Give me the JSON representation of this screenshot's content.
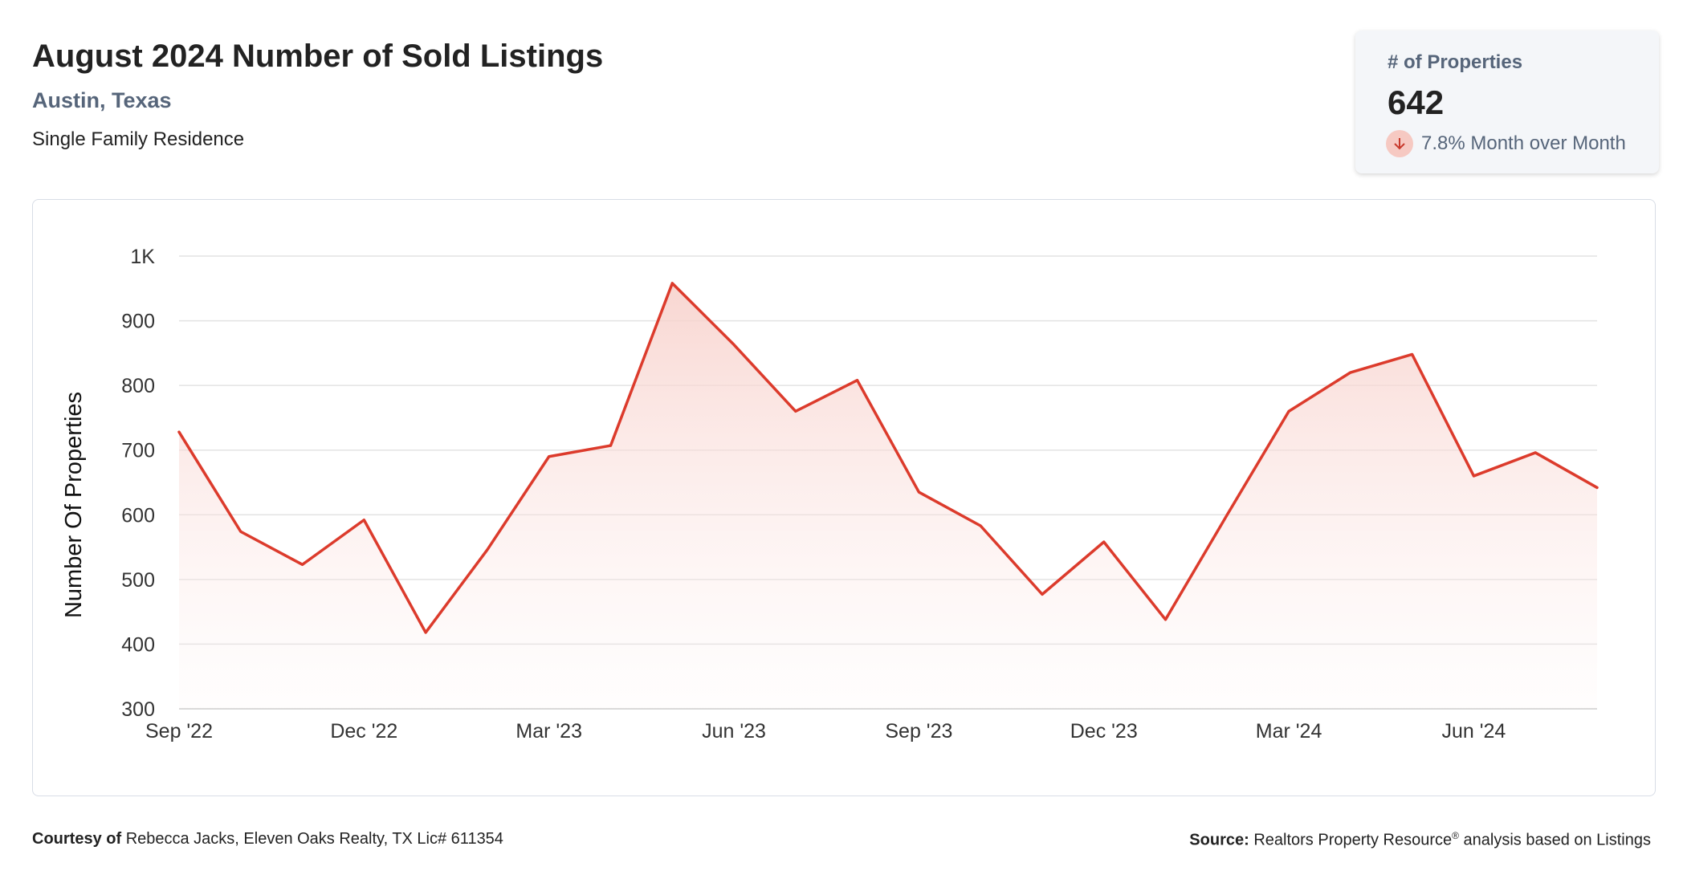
{
  "header": {
    "title": "August 2024 Number of Sold Listings",
    "location": "Austin, Texas",
    "property_type": "Single Family Residence"
  },
  "kpi": {
    "label": "# of Properties",
    "value": "642",
    "change_text": "7.8% Month over Month",
    "direction_icon": "arrow-down-icon"
  },
  "colors": {
    "line": "#dc3b2c",
    "fill": "#f7cfc9",
    "grid": "#e3e3e3",
    "axis_text": "#333333"
  },
  "chart_data": {
    "type": "area",
    "title": "",
    "ylabel": "Number Of Properties",
    "xlabel": "",
    "ylim": [
      300,
      1000
    ],
    "y_ticks": [
      {
        "value": 300,
        "label": "300"
      },
      {
        "value": 400,
        "label": "400"
      },
      {
        "value": 500,
        "label": "500"
      },
      {
        "value": 600,
        "label": "600"
      },
      {
        "value": 700,
        "label": "700"
      },
      {
        "value": 800,
        "label": "800"
      },
      {
        "value": 900,
        "label": "900"
      },
      {
        "value": 1000,
        "label": "1K"
      }
    ],
    "x": [
      "Sep '22",
      "Oct '22",
      "Nov '22",
      "Dec '22",
      "Jan '23",
      "Feb '23",
      "Mar '23",
      "Apr '23",
      "May '23",
      "Jun '23",
      "Jul '23",
      "Aug '23",
      "Sep '23",
      "Oct '23",
      "Nov '23",
      "Dec '23",
      "Jan '24",
      "Feb '24",
      "Mar '24",
      "Apr '24",
      "May '24",
      "Jun '24",
      "Jul '24",
      "Aug '24"
    ],
    "x_tick_labels": [
      "Sep '22",
      "Dec '22",
      "Mar '23",
      "Jun '23",
      "Sep '23",
      "Dec '23",
      "Mar '24",
      "Jun '24"
    ],
    "grid": true,
    "series": [
      {
        "values": [
          728,
          574,
          523,
          592,
          418,
          546,
          690,
          707,
          958,
          863,
          760,
          808,
          635,
          583,
          477,
          558,
          438,
          600,
          760,
          820,
          848,
          660,
          696,
          642
        ]
      }
    ]
  },
  "footer": {
    "courtesy_label": "Courtesy of",
    "courtesy_text": "Rebecca Jacks, Eleven Oaks Realty, TX Lic# 611354",
    "source_label": "Source:",
    "source_name": "Realtors Property Resource",
    "source_mark": "®",
    "source_text": "analysis based on Listings"
  }
}
